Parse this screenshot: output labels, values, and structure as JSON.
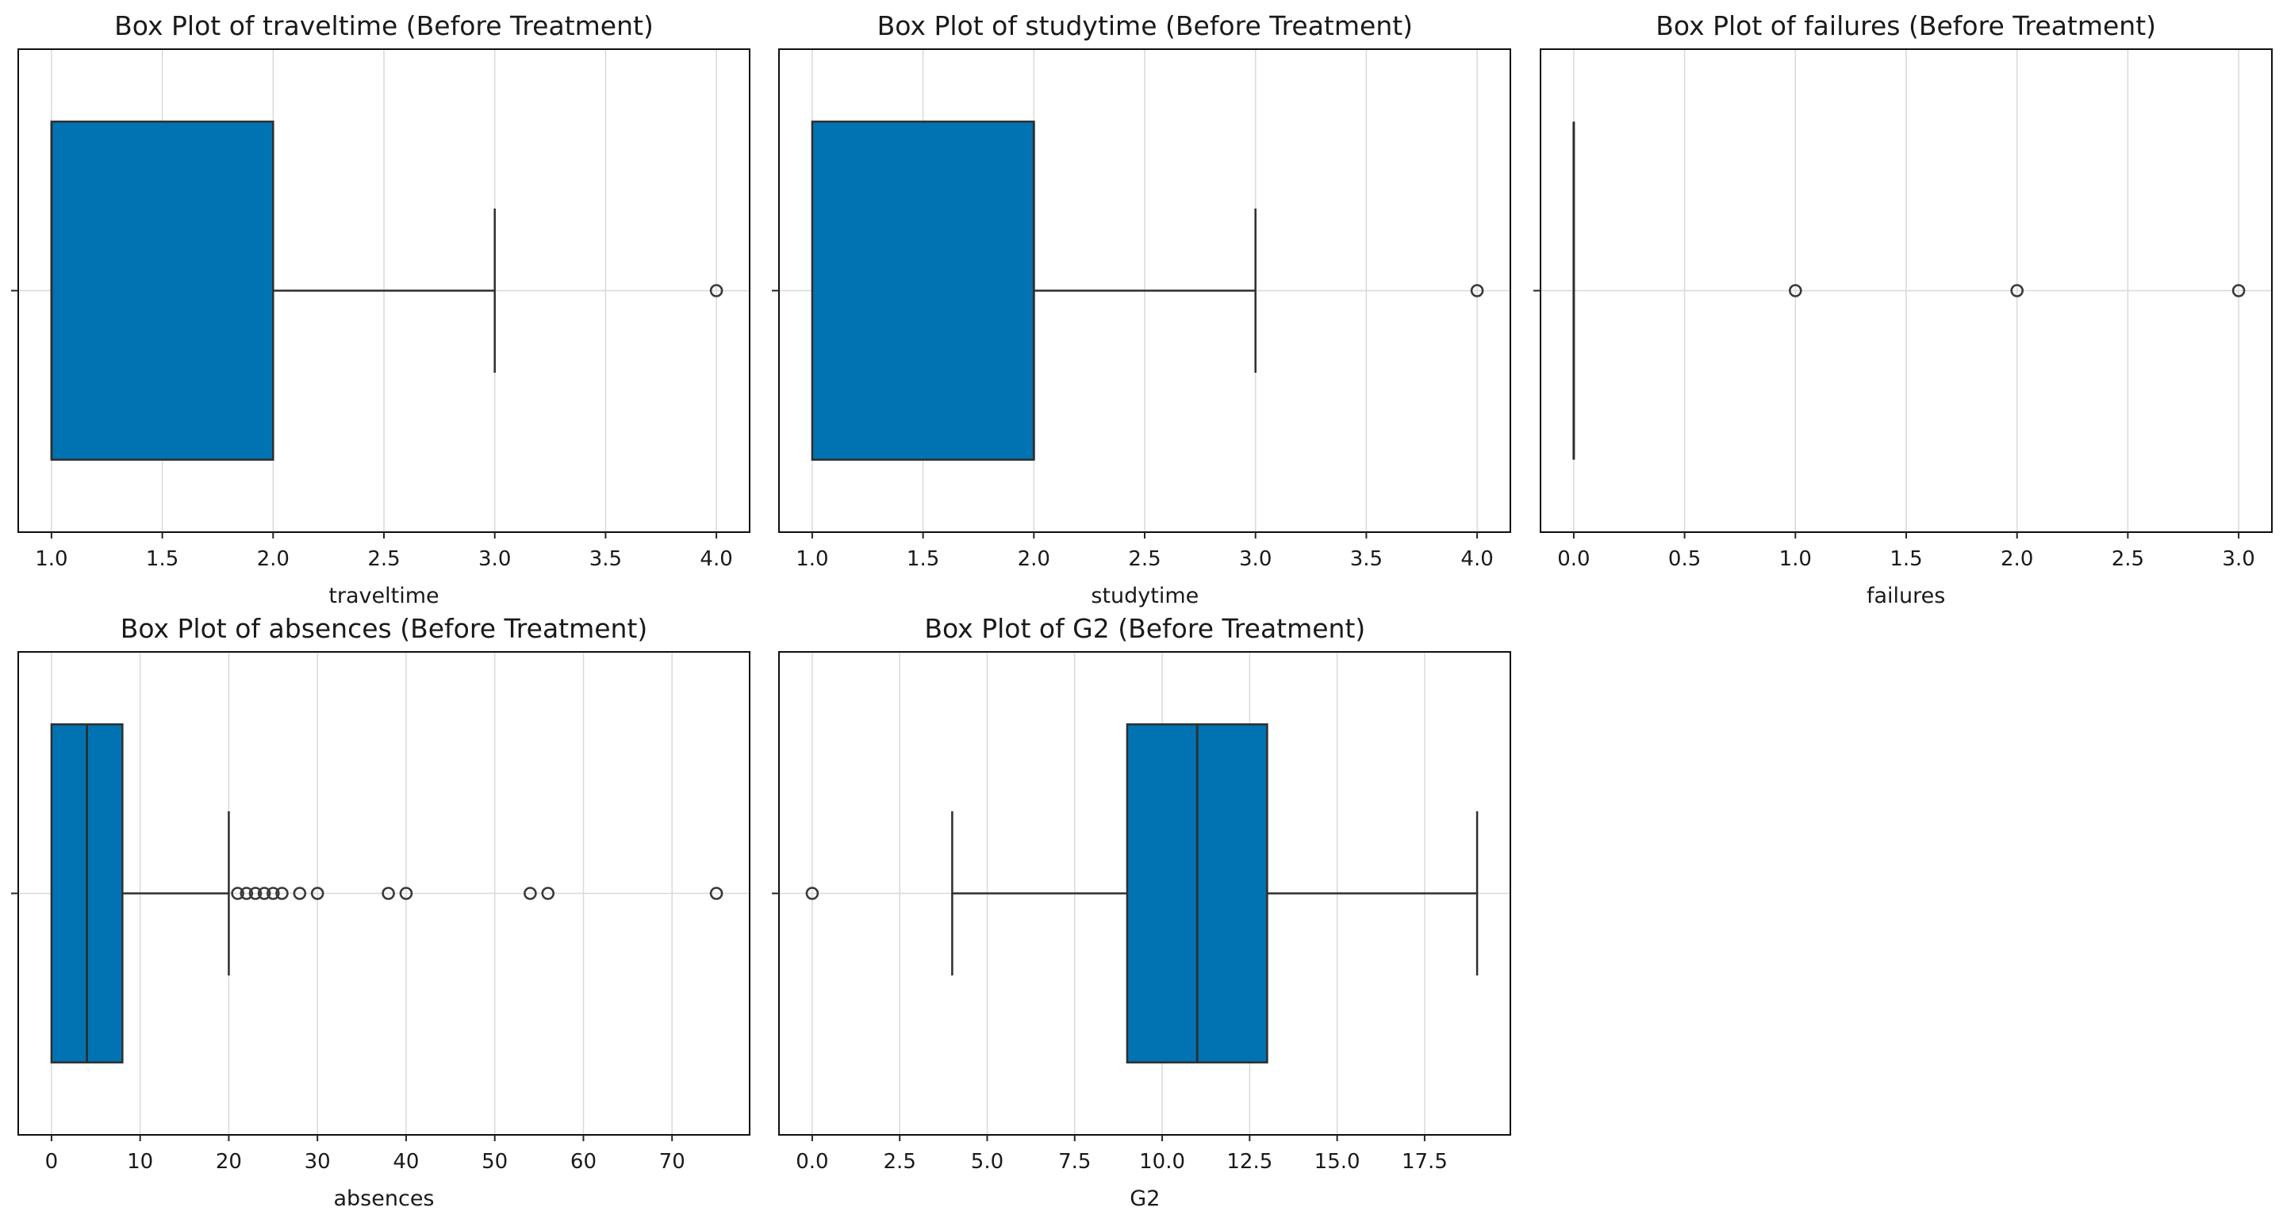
{
  "figure": {
    "background": "#ffffff",
    "rows": 2,
    "cols": 3,
    "empty_cells": 1
  },
  "colors": {
    "box_fill": "#0173b2",
    "box_edge": "#2e2e2e",
    "whisker": "#2e2e2e",
    "median": "#2e2e2e",
    "outlier_edge": "#3a3a3a",
    "grid": "#d9d9d9",
    "spine": "#0f0f0f",
    "tick": "#262626",
    "text": "#1a1a1a"
  },
  "chart_data": [
    {
      "type": "box",
      "orientation": "horizontal",
      "title": "Box Plot of traveltime (Before Treatment)",
      "xlabel": "traveltime",
      "grid": true,
      "xlim": [
        0.85,
        4.15
      ],
      "xticks": [
        1.0,
        1.5,
        2.0,
        2.5,
        3.0,
        3.5,
        4.0
      ],
      "xtick_labels": [
        "1.0",
        "1.5",
        "2.0",
        "2.5",
        "3.0",
        "3.5",
        "4.0"
      ],
      "box": {
        "q1": 1.0,
        "median": 1.0,
        "q3": 2.0,
        "whisker_low": 1.0,
        "whisker_high": 3.0
      },
      "outliers": [
        4.0
      ]
    },
    {
      "type": "box",
      "orientation": "horizontal",
      "title": "Box Plot of studytime (Before Treatment)",
      "xlabel": "studytime",
      "grid": true,
      "xlim": [
        0.85,
        4.15
      ],
      "xticks": [
        1.0,
        1.5,
        2.0,
        2.5,
        3.0,
        3.5,
        4.0
      ],
      "xtick_labels": [
        "1.0",
        "1.5",
        "2.0",
        "2.5",
        "3.0",
        "3.5",
        "4.0"
      ],
      "box": {
        "q1": 1.0,
        "median": 2.0,
        "q3": 2.0,
        "whisker_low": 1.0,
        "whisker_high": 3.0
      },
      "outliers": [
        4.0
      ]
    },
    {
      "type": "box",
      "orientation": "horizontal",
      "title": "Box Plot of failures (Before Treatment)",
      "xlabel": "failures",
      "grid": true,
      "xlim": [
        -0.15,
        3.15
      ],
      "xticks": [
        0.0,
        0.5,
        1.0,
        1.5,
        2.0,
        2.5,
        3.0
      ],
      "xtick_labels": [
        "0.0",
        "0.5",
        "1.0",
        "1.5",
        "2.0",
        "2.5",
        "3.0"
      ],
      "box": {
        "q1": 0.0,
        "median": 0.0,
        "q3": 0.0,
        "whisker_low": 0.0,
        "whisker_high": 0.0
      },
      "outliers": [
        1.0,
        2.0,
        3.0
      ]
    },
    {
      "type": "box",
      "orientation": "horizontal",
      "title": "Box Plot of absences (Before Treatment)",
      "xlabel": "absences",
      "grid": true,
      "xlim": [
        -3.75,
        78.75
      ],
      "xticks": [
        0,
        10,
        20,
        30,
        40,
        50,
        60,
        70
      ],
      "xtick_labels": [
        "0",
        "10",
        "20",
        "30",
        "40",
        "50",
        "60",
        "70"
      ],
      "box": {
        "q1": 0.0,
        "median": 4.0,
        "q3": 8.0,
        "whisker_low": 0.0,
        "whisker_high": 20.0
      },
      "outliers": [
        21,
        22,
        23,
        24,
        25,
        26,
        28,
        30,
        38,
        40,
        54,
        56,
        75
      ]
    },
    {
      "type": "box",
      "orientation": "horizontal",
      "title": "Box Plot of G2 (Before Treatment)",
      "xlabel": "G2",
      "grid": true,
      "xlim": [
        -0.95,
        19.95
      ],
      "xticks": [
        0.0,
        2.5,
        5.0,
        7.5,
        10.0,
        12.5,
        15.0,
        17.5
      ],
      "xtick_labels": [
        "0.0",
        "2.5",
        "5.0",
        "7.5",
        "10.0",
        "12.5",
        "15.0",
        "17.5"
      ],
      "box": {
        "q1": 9.0,
        "median": 11.0,
        "q3": 13.0,
        "whisker_low": 4.0,
        "whisker_high": 19.0
      },
      "outliers": [
        0.0
      ]
    }
  ]
}
